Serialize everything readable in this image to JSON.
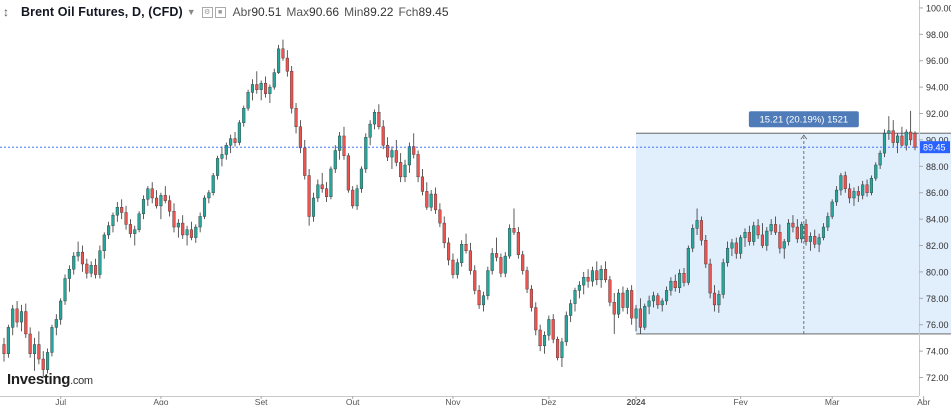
{
  "header": {
    "title": "Brent Oil Futures, D, (CFD)",
    "open_label": "Abr",
    "open_value": "90.51",
    "high_label": "Max",
    "high_value": "90.66",
    "low_label": "Min",
    "low_value": "89.22",
    "close_label": "Fch",
    "close_value": "89.45"
  },
  "brand": {
    "name": "Investing",
    "suffix": ".com"
  },
  "colors": {
    "up": "#26a69a",
    "down": "#ef5350",
    "measure_fill": "#dcebfb",
    "measure_label_bg": "#4f7cb8",
    "price_line": "#2962ff"
  },
  "chart_data": {
    "type": "candlestick",
    "title": "Brent Oil Futures, D, (CFD)",
    "y_ticks": [
      "100.00",
      "98.00",
      "96.00",
      "94.00",
      "92.00",
      "90.00",
      "88.00",
      "86.00",
      "84.00",
      "82.00",
      "80.00",
      "78.00",
      "76.00",
      "74.00",
      "72.00"
    ],
    "ylim": [
      70.6,
      100.6
    ],
    "x_labels": [
      {
        "label": "Jul",
        "index": 13
      },
      {
        "label": "Ago",
        "index": 36
      },
      {
        "label": "Set",
        "index": 59
      },
      {
        "label": "Out",
        "index": 80
      },
      {
        "label": "Nov",
        "index": 103
      },
      {
        "label": "Dez",
        "index": 125
      },
      {
        "label": "2024",
        "index": 145
      },
      {
        "label": "Fev",
        "index": 169
      },
      {
        "label": "Mar",
        "index": 190
      },
      {
        "label": "Abr",
        "index": 211
      }
    ],
    "current_price": "89.45",
    "measure": {
      "text": "15.21 (20.19%) 1521",
      "from_index": 145,
      "to_index": 222,
      "low": 75.3,
      "high": 90.51
    },
    "candles": [
      [
        74.5,
        75.0,
        73.2,
        73.8
      ],
      [
        73.8,
        76.0,
        73.5,
        75.8
      ],
      [
        75.8,
        77.5,
        75.2,
        77.2
      ],
      [
        77.2,
        77.8,
        75.8,
        76.2
      ],
      [
        76.2,
        77.5,
        75.5,
        77.0
      ],
      [
        77.0,
        77.6,
        75.0,
        75.3
      ],
      [
        75.3,
        75.8,
        73.5,
        73.8
      ],
      [
        73.8,
        75.0,
        72.5,
        74.5
      ],
      [
        74.5,
        75.5,
        73.0,
        73.4
      ],
      [
        73.4,
        74.0,
        72.0,
        72.6
      ],
      [
        72.6,
        74.2,
        72.3,
        73.9
      ],
      [
        73.9,
        76.0,
        73.6,
        75.8
      ],
      [
        75.8,
        76.8,
        75.2,
        76.4
      ],
      [
        76.4,
        78.0,
        76.0,
        77.8
      ],
      [
        77.8,
        79.8,
        77.5,
        79.5
      ],
      [
        79.5,
        80.5,
        78.5,
        80.2
      ],
      [
        80.2,
        81.5,
        79.8,
        81.2
      ],
      [
        81.2,
        82.3,
        80.8,
        81.5
      ],
      [
        81.5,
        82.0,
        80.0,
        80.6
      ],
      [
        80.6,
        81.0,
        79.5,
        79.9
      ],
      [
        79.9,
        80.8,
        79.6,
        80.5
      ],
      [
        80.5,
        81.0,
        79.5,
        79.8
      ],
      [
        79.8,
        82.0,
        79.5,
        81.6
      ],
      [
        81.6,
        83.0,
        81.0,
        82.8
      ],
      [
        82.8,
        83.8,
        82.5,
        83.5
      ],
      [
        83.5,
        84.5,
        83.0,
        84.3
      ],
      [
        84.3,
        85.3,
        83.8,
        84.9
      ],
      [
        84.9,
        85.5,
        84.0,
        84.5
      ],
      [
        84.5,
        85.0,
        83.2,
        83.6
      ],
      [
        83.6,
        84.0,
        82.6,
        82.9
      ],
      [
        82.9,
        83.5,
        82.0,
        83.2
      ],
      [
        83.2,
        84.6,
        83.0,
        84.4
      ],
      [
        84.4,
        85.8,
        84.0,
        85.5
      ],
      [
        85.5,
        86.5,
        85.0,
        86.3
      ],
      [
        86.3,
        86.8,
        85.2,
        85.6
      ],
      [
        85.6,
        86.2,
        84.8,
        85.0
      ],
      [
        85.0,
        86.0,
        84.0,
        85.8
      ],
      [
        85.8,
        86.5,
        85.2,
        85.4
      ],
      [
        85.4,
        85.8,
        84.2,
        84.6
      ],
      [
        84.6,
        85.2,
        83.0,
        83.4
      ],
      [
        83.4,
        84.0,
        82.6,
        83.7
      ],
      [
        83.7,
        84.3,
        82.5,
        82.8
      ],
      [
        82.8,
        83.5,
        82.0,
        83.2
      ],
      [
        83.2,
        83.8,
        82.4,
        82.6
      ],
      [
        82.6,
        83.6,
        82.2,
        83.4
      ],
      [
        83.4,
        84.5,
        83.0,
        84.2
      ],
      [
        84.2,
        85.8,
        84.0,
        85.6
      ],
      [
        85.6,
        86.2,
        85.2,
        86.0
      ],
      [
        86.0,
        87.5,
        85.8,
        87.3
      ],
      [
        87.3,
        88.8,
        87.0,
        88.6
      ],
      [
        88.6,
        89.5,
        88.0,
        88.9
      ],
      [
        88.9,
        89.8,
        88.5,
        89.6
      ],
      [
        89.6,
        90.4,
        89.0,
        90.1
      ],
      [
        90.1,
        90.6,
        89.5,
        89.8
      ],
      [
        89.8,
        91.5,
        89.6,
        91.3
      ],
      [
        91.3,
        92.6,
        91.0,
        92.4
      ],
      [
        92.4,
        93.8,
        92.2,
        93.6
      ],
      [
        93.6,
        94.6,
        93.0,
        94.2
      ],
      [
        94.2,
        95.2,
        93.5,
        93.8
      ],
      [
        93.8,
        94.5,
        93.0,
        94.3
      ],
      [
        94.3,
        94.8,
        93.2,
        93.5
      ],
      [
        93.5,
        94.2,
        92.8,
        94.0
      ],
      [
        94.0,
        95.4,
        93.8,
        95.1
      ],
      [
        95.1,
        97.2,
        95.0,
        96.9
      ],
      [
        96.9,
        97.6,
        96.0,
        96.2
      ],
      [
        96.2,
        96.8,
        94.8,
        95.2
      ],
      [
        95.2,
        95.6,
        92.0,
        92.4
      ],
      [
        92.4,
        92.8,
        90.5,
        91.0
      ],
      [
        91.0,
        91.5,
        89.0,
        89.4
      ],
      [
        89.4,
        90.0,
        87.0,
        87.3
      ],
      [
        87.3,
        87.8,
        83.5,
        84.2
      ],
      [
        84.2,
        86.0,
        83.8,
        85.6
      ],
      [
        85.6,
        87.0,
        85.3,
        86.6
      ],
      [
        86.6,
        87.5,
        86.0,
        86.3
      ],
      [
        86.3,
        86.8,
        85.3,
        85.7
      ],
      [
        85.7,
        88.0,
        85.5,
        87.8
      ],
      [
        87.8,
        89.6,
        87.5,
        89.2
      ],
      [
        89.2,
        90.6,
        88.5,
        90.3
      ],
      [
        90.3,
        91.0,
        88.5,
        88.8
      ],
      [
        88.8,
        89.0,
        86.0,
        86.2
      ],
      [
        86.2,
        86.5,
        84.8,
        85.0
      ],
      [
        85.0,
        86.6,
        84.7,
        86.3
      ],
      [
        86.3,
        88.0,
        86.0,
        87.8
      ],
      [
        87.8,
        90.5,
        87.5,
        90.2
      ],
      [
        90.2,
        91.5,
        89.6,
        91.2
      ],
      [
        91.2,
        92.3,
        90.8,
        92.1
      ],
      [
        92.1,
        92.7,
        90.8,
        91.0
      ],
      [
        91.0,
        91.5,
        89.3,
        89.6
      ],
      [
        89.6,
        90.2,
        88.4,
        88.7
      ],
      [
        88.7,
        89.5,
        87.8,
        89.2
      ],
      [
        89.2,
        90.0,
        88.0,
        88.3
      ],
      [
        88.3,
        89.0,
        86.8,
        87.2
      ],
      [
        87.2,
        88.5,
        86.8,
        88.1
      ],
      [
        88.1,
        89.8,
        87.5,
        89.5
      ],
      [
        89.5,
        90.5,
        88.6,
        88.9
      ],
      [
        88.9,
        89.2,
        86.8,
        87.2
      ],
      [
        87.2,
        87.8,
        85.8,
        86.1
      ],
      [
        86.1,
        86.8,
        84.7,
        84.9
      ],
      [
        84.9,
        86.2,
        84.6,
        85.9
      ],
      [
        85.9,
        86.4,
        84.4,
        84.7
      ],
      [
        84.7,
        85.2,
        83.4,
        83.7
      ],
      [
        83.7,
        84.2,
        81.8,
        82.2
      ],
      [
        82.2,
        82.6,
        80.5,
        80.9
      ],
      [
        80.9,
        81.4,
        79.5,
        79.8
      ],
      [
        79.8,
        81.0,
        79.5,
        80.7
      ],
      [
        80.7,
        82.4,
        80.4,
        82.1
      ],
      [
        82.1,
        82.9,
        81.4,
        81.6
      ],
      [
        81.6,
        82.2,
        79.8,
        80.1
      ],
      [
        80.1,
        80.5,
        78.3,
        78.6
      ],
      [
        78.6,
        79.0,
        77.2,
        77.5
      ],
      [
        77.5,
        78.5,
        77.0,
        78.2
      ],
      [
        78.2,
        80.4,
        77.9,
        80.1
      ],
      [
        80.1,
        81.8,
        79.8,
        81.4
      ],
      [
        81.4,
        82.6,
        80.8,
        81.1
      ],
      [
        81.1,
        81.4,
        79.6,
        79.9
      ],
      [
        79.9,
        81.5,
        79.6,
        81.2
      ],
      [
        81.2,
        83.6,
        81.0,
        83.3
      ],
      [
        83.3,
        84.8,
        82.8,
        83.0
      ],
      [
        83.0,
        83.4,
        81.0,
        81.3
      ],
      [
        81.3,
        81.6,
        79.8,
        80.1
      ],
      [
        80.1,
        80.4,
        78.4,
        78.7
      ],
      [
        78.7,
        79.0,
        77.0,
        77.3
      ],
      [
        77.3,
        77.7,
        75.2,
        75.6
      ],
      [
        75.6,
        76.0,
        74.0,
        74.4
      ],
      [
        74.4,
        75.5,
        73.8,
        75.2
      ],
      [
        75.2,
        76.7,
        74.8,
        76.4
      ],
      [
        76.4,
        76.8,
        74.6,
        74.9
      ],
      [
        74.9,
        75.1,
        73.3,
        73.5
      ],
      [
        73.5,
        75.0,
        72.8,
        74.7
      ],
      [
        74.7,
        77.0,
        74.4,
        76.7
      ],
      [
        76.7,
        77.9,
        76.2,
        77.6
      ],
      [
        77.6,
        78.8,
        77.0,
        78.6
      ],
      [
        78.6,
        79.3,
        78.0,
        79.0
      ],
      [
        79.0,
        80.0,
        78.3,
        79.6
      ],
      [
        79.6,
        80.2,
        78.8,
        79.3
      ],
      [
        79.3,
        80.4,
        78.9,
        80.1
      ],
      [
        80.1,
        80.8,
        79.0,
        79.4
      ],
      [
        79.4,
        80.5,
        78.8,
        80.2
      ],
      [
        80.2,
        80.8,
        79.2,
        79.4
      ],
      [
        79.4,
        79.7,
        77.4,
        77.7
      ],
      [
        77.7,
        78.4,
        75.3,
        76.8
      ],
      [
        76.8,
        78.7,
        76.5,
        78.4
      ],
      [
        78.4,
        78.9,
        77.0,
        77.3
      ],
      [
        77.3,
        78.8,
        76.8,
        78.6
      ],
      [
        78.6,
        79.0,
        76.0,
        76.5
      ],
      [
        76.5,
        77.5,
        75.5,
        77.2
      ],
      [
        77.2,
        78.0,
        75.3,
        75.8
      ],
      [
        75.8,
        77.6,
        75.6,
        77.4
      ],
      [
        77.4,
        78.2,
        76.8,
        77.8
      ],
      [
        77.8,
        78.5,
        77.3,
        78.2
      ],
      [
        78.2,
        78.4,
        77.2,
        77.5
      ],
      [
        77.5,
        78.0,
        77.0,
        77.8
      ],
      [
        77.8,
        78.9,
        77.5,
        78.6
      ],
      [
        78.6,
        79.6,
        78.2,
        79.3
      ],
      [
        79.3,
        79.8,
        78.5,
        78.8
      ],
      [
        78.8,
        80.2,
        78.4,
        79.9
      ],
      [
        79.9,
        80.3,
        78.9,
        79.2
      ],
      [
        79.2,
        82.0,
        79.0,
        81.8
      ],
      [
        81.8,
        83.6,
        81.5,
        83.3
      ],
      [
        83.3,
        84.8,
        82.8,
        83.9
      ],
      [
        83.9,
        84.2,
        82.0,
        82.4
      ],
      [
        82.4,
        82.8,
        80.3,
        80.6
      ],
      [
        80.6,
        81.0,
        78.0,
        78.4
      ],
      [
        78.4,
        79.0,
        77.0,
        77.5
      ],
      [
        77.5,
        78.6,
        76.9,
        78.3
      ],
      [
        78.3,
        81.0,
        78.0,
        80.7
      ],
      [
        80.7,
        82.3,
        80.4,
        81.8
      ],
      [
        81.8,
        82.5,
        81.2,
        82.2
      ],
      [
        82.2,
        82.6,
        81.0,
        81.4
      ],
      [
        81.4,
        82.8,
        81.0,
        82.6
      ],
      [
        82.6,
        83.3,
        81.9,
        83.0
      ],
      [
        83.0,
        83.5,
        82.0,
        82.3
      ],
      [
        82.3,
        83.8,
        82.0,
        83.5
      ],
      [
        83.5,
        84.0,
        82.5,
        82.8
      ],
      [
        82.8,
        83.7,
        81.8,
        82.0
      ],
      [
        82.0,
        83.4,
        81.6,
        83.1
      ],
      [
        83.1,
        84.0,
        82.8,
        83.6
      ],
      [
        83.6,
        84.2,
        82.8,
        83.0
      ],
      [
        83.0,
        83.6,
        81.4,
        81.8
      ],
      [
        81.8,
        82.5,
        81.0,
        82.3
      ],
      [
        82.3,
        84.0,
        82.0,
        83.7
      ],
      [
        83.7,
        84.3,
        83.0,
        83.4
      ],
      [
        83.4,
        84.0,
        82.2,
        82.5
      ],
      [
        82.5,
        83.8,
        82.2,
        83.6
      ],
      [
        83.6,
        84.0,
        82.0,
        82.3
      ],
      [
        82.3,
        83.0,
        81.6,
        82.7
      ],
      [
        82.7,
        83.2,
        81.8,
        82.1
      ],
      [
        82.1,
        82.9,
        81.5,
        82.6
      ],
      [
        82.6,
        83.7,
        82.4,
        83.4
      ],
      [
        83.4,
        84.5,
        83.1,
        84.2
      ],
      [
        84.2,
        85.5,
        84.0,
        85.3
      ],
      [
        85.3,
        86.5,
        85.0,
        86.2
      ],
      [
        86.2,
        87.5,
        85.8,
        87.3
      ],
      [
        87.3,
        87.6,
        86.0,
        86.3
      ],
      [
        86.3,
        86.7,
        85.2,
        85.6
      ],
      [
        85.6,
        86.4,
        85.0,
        86.1
      ],
      [
        86.1,
        86.5,
        85.3,
        85.8
      ],
      [
        85.8,
        86.9,
        85.5,
        86.6
      ],
      [
        86.6,
        87.0,
        85.7,
        86.0
      ],
      [
        86.0,
        87.3,
        85.8,
        87.1
      ],
      [
        87.1,
        88.3,
        86.9,
        88.1
      ],
      [
        88.1,
        89.2,
        87.8,
        89.0
      ],
      [
        89.0,
        90.8,
        88.7,
        90.5
      ],
      [
        90.5,
        91.8,
        90.0,
        90.7
      ],
      [
        90.7,
        91.5,
        89.5,
        89.8
      ],
      [
        89.8,
        90.5,
        89.0,
        90.3
      ],
      [
        90.3,
        91.0,
        89.5,
        89.6
      ],
      [
        89.6,
        90.8,
        89.2,
        90.6
      ],
      [
        90.6,
        92.2,
        89.6,
        90.0
      ],
      [
        90.51,
        90.66,
        89.22,
        89.45
      ]
    ]
  }
}
